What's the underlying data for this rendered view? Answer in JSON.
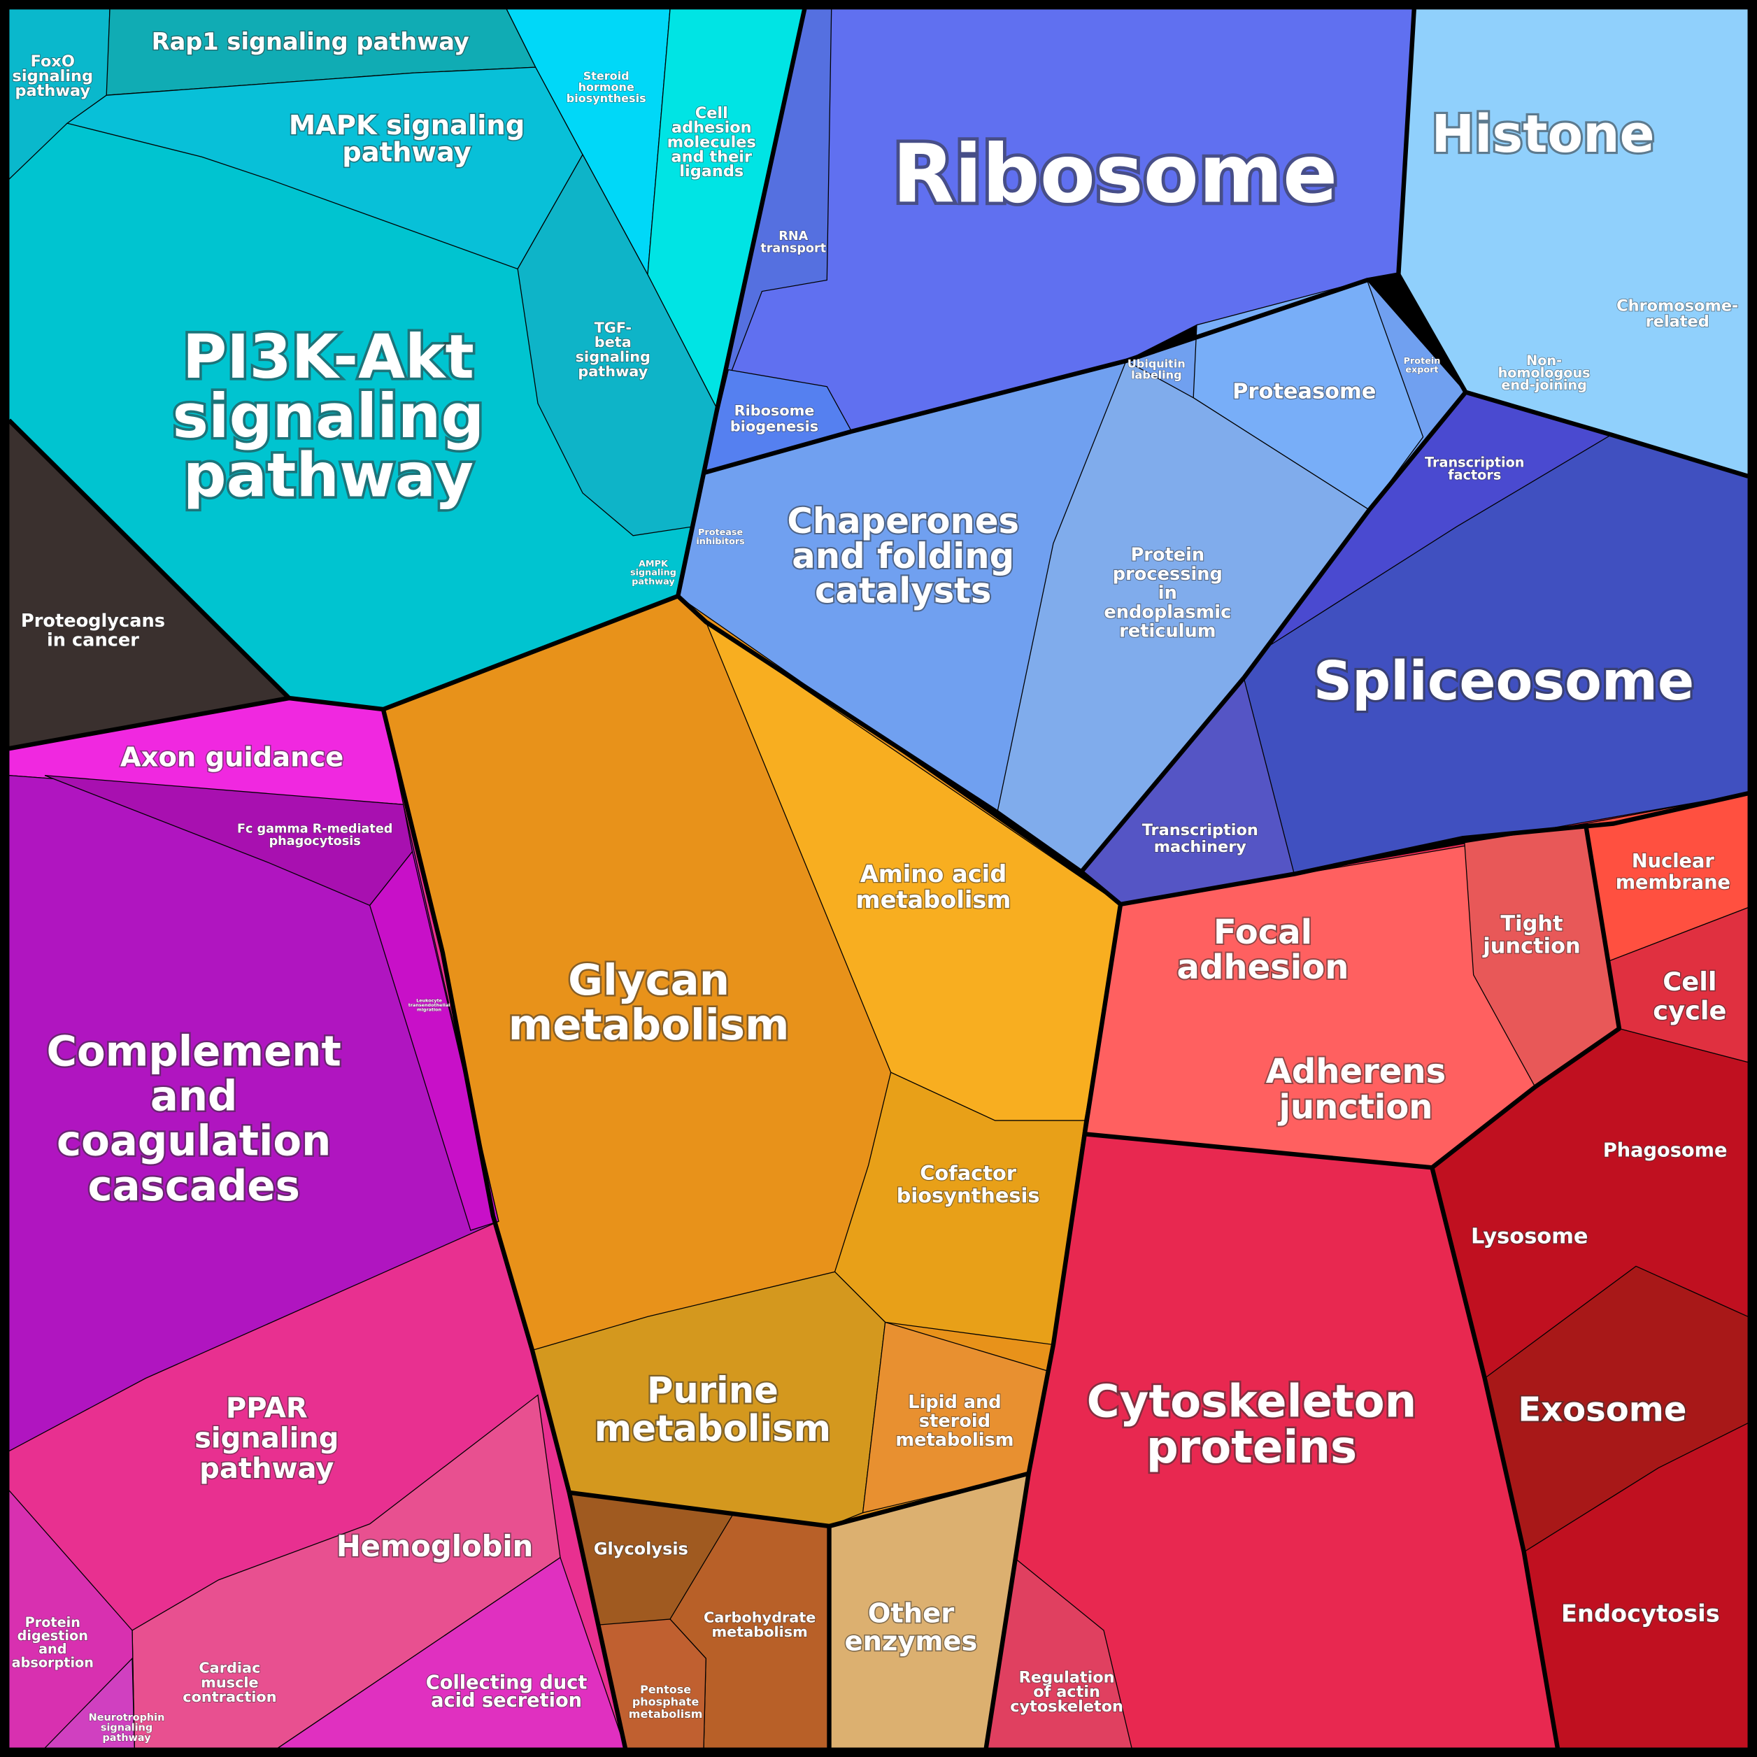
{
  "nodes": [
    {
      "lines": [
        "FoxO",
        "signaling",
        "pathway"
      ]
    },
    {
      "lines": [
        "Rap1 signaling pathway"
      ]
    },
    {
      "lines": [
        "MAPK signaling",
        "pathway"
      ]
    },
    {
      "lines": [
        "Steroid",
        "hormone",
        "biosynthesis"
      ]
    },
    {
      "lines": [
        "Cell",
        "adhesion",
        "molecules",
        "and their",
        "ligands"
      ]
    },
    {
      "lines": [
        "RNA",
        "transport"
      ]
    },
    {
      "lines": [
        "Ribosome"
      ]
    },
    {
      "lines": [
        "Histone"
      ]
    },
    {
      "lines": [
        "PI3K-Akt",
        "signaling",
        "pathway"
      ]
    },
    {
      "lines": [
        "TGF-",
        "beta",
        "signaling",
        "pathway"
      ]
    },
    {
      "lines": [
        "Ribosome",
        "biogenesis"
      ]
    },
    {
      "lines": [
        "Ubiquitin",
        "labeling"
      ]
    },
    {
      "lines": [
        "Proteasome"
      ]
    },
    {
      "lines": [
        "Protein",
        "export"
      ]
    },
    {
      "lines": [
        "Non-",
        "homologous",
        "end-joining"
      ]
    },
    {
      "lines": [
        "Chromosome-",
        "related"
      ]
    },
    {
      "lines": [
        "Transcription",
        "factors"
      ]
    },
    {
      "lines": [
        "Protease",
        "inhibitors"
      ]
    },
    {
      "lines": [
        "Chaperones",
        "and folding",
        "catalysts"
      ]
    },
    {
      "lines": [
        "Protein",
        "processing",
        "in",
        "endoplasmic",
        "reticulum"
      ]
    },
    {
      "lines": [
        "AMPK",
        "signaling",
        "pathway"
      ]
    },
    {
      "lines": [
        "Proteoglycans",
        "in cancer"
      ]
    },
    {
      "lines": [
        "Spliceosome"
      ]
    },
    {
      "lines": [
        "Axon guidance"
      ]
    },
    {
      "lines": [
        "Fc gamma R-mediated",
        "phagocytosis"
      ]
    },
    {
      "lines": [
        "Transcription",
        "machinery"
      ]
    },
    {
      "lines": [
        "Amino acid",
        "metabolism"
      ]
    },
    {
      "lines": [
        "Nuclear",
        "membrane"
      ]
    },
    {
      "lines": [
        "Focal",
        "adhesion"
      ]
    },
    {
      "lines": [
        "Tight",
        "junction"
      ]
    },
    {
      "lines": [
        "Glycan",
        "metabolism"
      ]
    },
    {
      "lines": [
        "Leukocyte",
        "transendothelial",
        "migration"
      ]
    },
    {
      "lines": [
        "Cell",
        "cycle"
      ]
    },
    {
      "lines": [
        "Complement",
        "and",
        "coagulation",
        "cascades"
      ]
    },
    {
      "lines": [
        "Adherens",
        "junction"
      ]
    },
    {
      "lines": [
        "Phagosome"
      ]
    },
    {
      "lines": [
        "Cofactor",
        "biosynthesis"
      ]
    },
    {
      "lines": [
        "Lysosome"
      ]
    },
    {
      "lines": [
        "Purine",
        "metabolism"
      ]
    },
    {
      "lines": [
        "Cytoskeleton",
        "proteins"
      ]
    },
    {
      "lines": [
        "PPAR",
        "signaling",
        "pathway"
      ]
    },
    {
      "lines": [
        "Lipid and",
        "steroid",
        "metabolism"
      ]
    },
    {
      "lines": [
        "Exosome"
      ]
    },
    {
      "lines": [
        "Hemoglobin"
      ]
    },
    {
      "lines": [
        "Glycolysis"
      ]
    },
    {
      "lines": [
        "Endocytosis"
      ]
    },
    {
      "lines": [
        "Other",
        "enzymes"
      ]
    },
    {
      "lines": [
        "Carbohydrate",
        "metabolism"
      ]
    },
    {
      "lines": [
        "Protein",
        "digestion",
        "and",
        "absorption"
      ]
    },
    {
      "lines": [
        "Cardiac",
        "muscle",
        "contraction"
      ]
    },
    {
      "lines": [
        "Regulation",
        "of actin",
        "cytoskeleton"
      ]
    },
    {
      "lines": [
        "Collecting duct",
        "acid secretion"
      ]
    },
    {
      "lines": [
        "Pentose",
        "phosphate",
        "metabolism"
      ]
    },
    {
      "lines": [
        "Neurotrophin",
        "signaling",
        "pathway"
      ]
    }
  ]
}
